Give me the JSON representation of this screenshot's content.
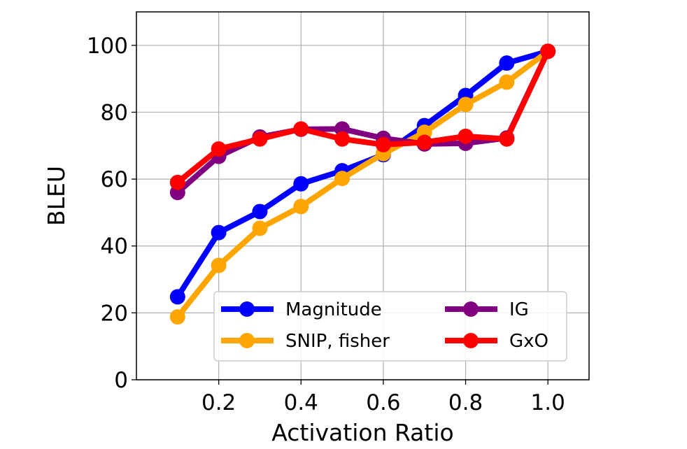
{
  "chart_data": {
    "type": "line",
    "xlabel": "Activation Ratio",
    "ylabel": "BLEU",
    "xlim": [
      0.0,
      1.1
    ],
    "ylim": [
      0,
      110
    ],
    "xticks": [
      0.2,
      0.4,
      0.6,
      0.8,
      1.0
    ],
    "xtick_labels": [
      "0.2",
      "0.4",
      "0.6",
      "0.8",
      "1.0"
    ],
    "yticks": [
      0,
      20,
      40,
      60,
      80,
      100
    ],
    "ytick_labels": [
      "0",
      "20",
      "40",
      "60",
      "80",
      "100"
    ],
    "grid": true,
    "legend_position": "lower-right",
    "legend_columns": 2,
    "x": [
      0.1,
      0.2,
      0.3,
      0.4,
      0.5,
      0.6,
      0.7,
      0.8,
      0.9,
      1.0
    ],
    "series": [
      {
        "name": "Magnitude",
        "color": "#0000ff",
        "values": [
          24.8,
          44.0,
          50.3,
          58.6,
          62.5,
          67.3,
          76.0,
          85.0,
          94.7,
          98.2
        ]
      },
      {
        "name": "SNIP, fisher",
        "color": "#ffa500",
        "values": [
          18.8,
          34.2,
          45.3,
          51.8,
          60.2,
          67.6,
          74.0,
          82.3,
          89.0,
          98.2
        ]
      },
      {
        "name": "IG",
        "color": "#800080",
        "values": [
          56.0,
          66.8,
          72.6,
          74.9,
          75.0,
          72.2,
          70.5,
          70.7,
          72.3,
          98.2
        ]
      },
      {
        "name": "GxO",
        "color": "#ff0000",
        "values": [
          59.0,
          69.0,
          72.0,
          75.0,
          72.0,
          70.3,
          71.0,
          72.8,
          72.0,
          98.2
        ]
      }
    ]
  }
}
